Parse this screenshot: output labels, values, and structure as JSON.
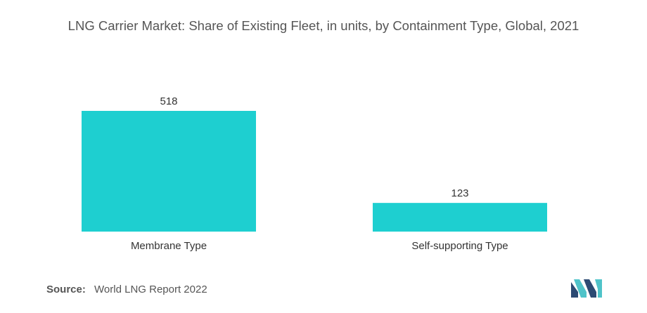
{
  "title": "LNG Carrier Market: Share of Existing Fleet, in units, by Containment Type, Global, 2021",
  "source": {
    "label": "Source:",
    "text": "World LNG Report 2022"
  },
  "colors": {
    "bar": "#1ECFD0",
    "logo_dark": "#2C4A73",
    "logo_light": "#4FC3C9"
  },
  "logo_icon": "mordor-intelligence-logo",
  "chart_data": {
    "type": "bar",
    "categories": [
      "Membrane Type",
      "Self-supporting Type"
    ],
    "values": [
      518,
      123
    ],
    "data_labels": [
      "518",
      "123"
    ],
    "title": "LNG Carrier Market: Share of Existing Fleet, in units, by Containment Type, Global, 2021",
    "xlabel": "",
    "ylabel": "",
    "ylim": [
      0,
      518
    ],
    "grid": false,
    "legend": "none"
  }
}
